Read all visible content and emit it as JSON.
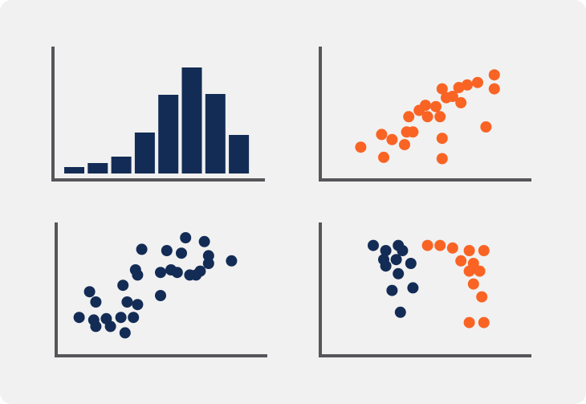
{
  "colors": {
    "card_background": "#f1f1f1",
    "axis": "#56565a",
    "navy": "#132c55",
    "orange": "#f96424"
  },
  "chart_data": [
    {
      "type": "bar",
      "position": "top-left",
      "title": "",
      "xlabel": "",
      "ylabel": "",
      "grid": false,
      "ylim": [
        0,
        140
      ],
      "values": [
        8,
        13,
        21,
        51,
        98,
        132,
        99,
        48
      ],
      "color": "#132c55"
    },
    {
      "type": "scatter",
      "position": "top-right",
      "title": "",
      "xlabel": "",
      "ylabel": "",
      "grid": false,
      "xlim": [
        0,
        100
      ],
      "ylim": [
        0,
        100
      ],
      "series": [
        {
          "color": "#f96424",
          "points": [
            [
              19,
              22
            ],
            [
              29,
              32
            ],
            [
              34,
              28
            ],
            [
              30,
              14
            ],
            [
              40,
              24
            ],
            [
              41,
              34
            ],
            [
              44,
              34
            ],
            [
              42,
              46
            ],
            [
              47,
              51
            ],
            [
              50,
              55
            ],
            [
              51,
              46
            ],
            [
              55,
              54
            ],
            [
              57,
              46
            ],
            [
              58,
              29
            ],
            [
              58,
              13
            ],
            [
              60,
              61
            ],
            [
              58,
              68
            ],
            [
              63,
              62
            ],
            [
              66,
              69
            ],
            [
              67,
              57
            ],
            [
              70,
              71
            ],
            [
              75,
              73
            ],
            [
              79,
              38
            ],
            [
              83,
              79
            ],
            [
              83,
              68
            ]
          ]
        }
      ]
    },
    {
      "type": "scatter",
      "position": "bottom-left",
      "title": "",
      "xlabel": "",
      "ylabel": "",
      "grid": false,
      "xlim": [
        0,
        100
      ],
      "ylim": [
        0,
        100
      ],
      "series": [
        {
          "color": "#132c55",
          "points": [
            [
              11,
              28
            ],
            [
              16,
              48
            ],
            [
              19,
              40
            ],
            [
              18,
              26
            ],
            [
              19,
              21
            ],
            [
              24,
              27
            ],
            [
              26,
              21
            ],
            [
              31,
              28
            ],
            [
              33,
              16
            ],
            [
              32,
              53
            ],
            [
              34,
              40
            ],
            [
              37,
              28
            ],
            [
              39,
              38
            ],
            [
              38,
              65
            ],
            [
              39,
              61
            ],
            [
              41,
              81
            ],
            [
              50,
              45
            ],
            [
              50,
              63
            ],
            [
              53,
              80
            ],
            [
              55,
              65
            ],
            [
              58,
              63
            ],
            [
              60,
              78
            ],
            [
              62,
              90
            ],
            [
              64,
              61
            ],
            [
              67,
              61
            ],
            [
              69,
              64
            ],
            [
              71,
              87
            ],
            [
              73,
              70
            ],
            [
              73,
              76
            ],
            [
              84,
              72
            ]
          ]
        }
      ]
    },
    {
      "type": "scatter",
      "position": "bottom-right",
      "title": "",
      "xlabel": "",
      "ylabel": "",
      "grid": false,
      "xlim": [
        0,
        100
      ],
      "ylim": [
        0,
        100
      ],
      "series": [
        {
          "color": "#132c55",
          "points": [
            [
              25,
              84
            ],
            [
              30,
              73
            ],
            [
              31,
              80
            ],
            [
              31,
              68
            ],
            [
              36,
              73
            ],
            [
              37,
              62
            ],
            [
              34,
              49
            ],
            [
              37,
              84
            ],
            [
              38,
              32
            ],
            [
              39,
              80
            ],
            [
              43,
              70
            ],
            [
              44,
              51
            ]
          ]
        },
        {
          "color": "#f96424",
          "points": [
            [
              51,
              84
            ],
            [
              57,
              84
            ],
            [
              63,
              82
            ],
            [
              67,
              72
            ],
            [
              71,
              64
            ],
            [
              71,
              80
            ],
            [
              73,
              70
            ],
            [
              73,
              54
            ],
            [
              77,
              44
            ],
            [
              76,
              64
            ],
            [
              78,
              80
            ],
            [
              71,
              24
            ],
            [
              78,
              24
            ]
          ]
        }
      ]
    }
  ]
}
